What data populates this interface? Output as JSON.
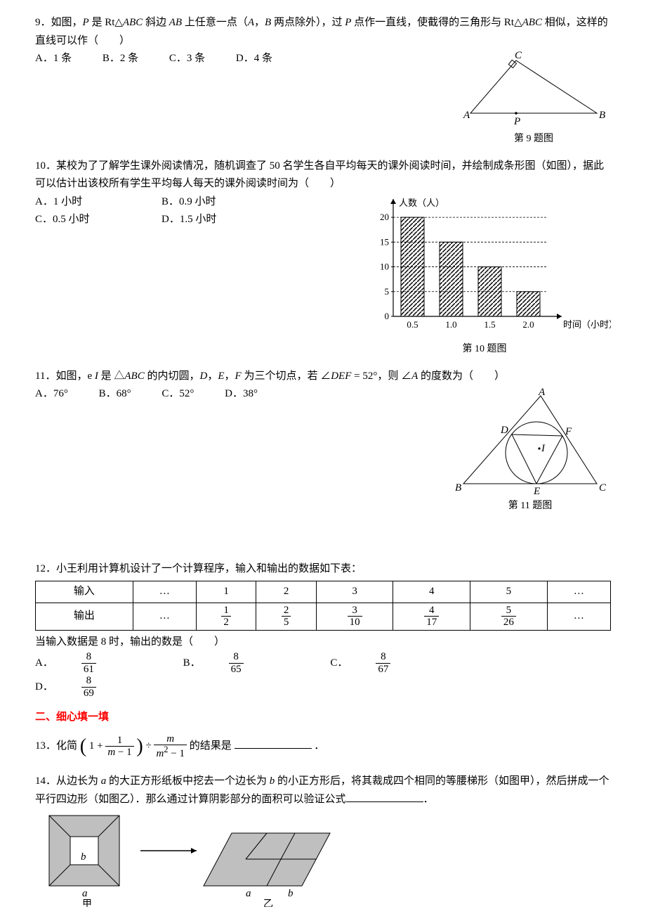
{
  "q9": {
    "stem_a": "9．如图，",
    "stem_b": "P",
    "stem_c": " 是 Rt△",
    "stem_d": "ABC",
    "stem_e": " 斜边 ",
    "stem_f": "AB",
    "stem_g": " 上任意一点（",
    "stem_h": "A",
    "stem_i": "，",
    "stem_j": "B",
    "stem_k": " 两点除外），过 ",
    "stem_l": "P",
    "stem_m": " 点作一直线，使截得的三角形与 Rt△",
    "stem_n": "ABC",
    "stem_o": " 相似，这样的直线可以作（　　）",
    "optA": "A．1 条",
    "optB": "B．2 条",
    "optC": "C．3 条",
    "optD": "D．4 条",
    "labels": {
      "A": "A",
      "B": "B",
      "C": "C",
      "P": "P"
    },
    "caption": "第 9 题图"
  },
  "q10": {
    "stem": "10．某校为了了解学生课外阅读情况，随机调查了 50 名学生各自平均每天的课外阅读时间，并绘制成条形图（如图），据此可以估计出该校所有学生平均每人每天的课外阅读时间为（　　）",
    "optA": "A．1 小时",
    "optB": "B．0.9 小时",
    "optC": "C．0.5 小时",
    "optD": "D．1.5 小时",
    "chart": {
      "categories": [
        "0.5",
        "1.0",
        "1.5",
        "2.0"
      ],
      "values": [
        20,
        15,
        10,
        5
      ],
      "yticks": [
        0,
        5,
        10,
        15,
        20
      ],
      "ymax": 22,
      "bar_width": 0.6,
      "bar_fill": "#ffffff",
      "bar_stroke": "#000000",
      "hatch": true,
      "grid_dash": "3,2",
      "ylabel": "人数（人）",
      "xlabel": "时间（小时）"
    },
    "caption": "第 10 题图"
  },
  "q11": {
    "stem_a": "11．如图，e ",
    "stem_b": "I",
    "stem_c": " 是 △",
    "stem_d": "ABC",
    "stem_e": " 的内切圆，",
    "stem_f": "D",
    "stem_g": "，",
    "stem_h": "E",
    "stem_i": "，",
    "stem_j": "F",
    "stem_k": " 为三个切点，若 ∠",
    "stem_l": "DEF",
    "stem_m": " = 52°，则 ∠",
    "stem_n": "A",
    "stem_o": " 的度数为（　　）",
    "optA": "A．76°",
    "optB": "B．68°",
    "optC": "C．52°",
    "optD": "D．38°",
    "labels": {
      "A": "A",
      "B": "B",
      "C": "C",
      "D": "D",
      "E": "E",
      "F": "F",
      "I": "I"
    },
    "caption": "第 11 题图"
  },
  "q12": {
    "stem": "12．小王利用计算机设计了一个计算程序，输入和输出的数据如下表：",
    "header_in": "输入",
    "header_out": "输出",
    "dots": "…",
    "inputs": [
      "1",
      "2",
      "3",
      "4",
      "5"
    ],
    "out_nums": [
      "1",
      "2",
      "3",
      "4",
      "5"
    ],
    "out_dens": [
      "2",
      "5",
      "10",
      "17",
      "26"
    ],
    "question": "当输入数据是 8 时，输出的数是（　　）",
    "optA_pre": "A．",
    "optB_pre": "B．",
    "optC_pre": "C．",
    "optD_pre": "D．",
    "num": "8",
    "denA": "61",
    "denB": "65",
    "denC": "67",
    "denD": "69"
  },
  "sec2": "二、细心填一填",
  "q13": {
    "pre": "13．化简",
    "f1num": "1",
    "f1den_a": "m",
    "f1den_b": " − 1",
    "div": " ÷ ",
    "f2num": "m",
    "f2den_a": "m",
    "f2den_b": "2",
    "f2den_c": " − 1",
    "post": " 的结果是",
    "end": "．"
  },
  "q14": {
    "stem_a": "14．从边长为 ",
    "stem_b": "a",
    "stem_c": " 的大正方形纸板中挖去一个边长为 ",
    "stem_d": "b",
    "stem_e": " 的小正方形后，将其裁成四个相同的等腰梯形（如图甲），然后拼成一个平行四边形（如图乙）．那么通过计算阴影部分的面积可以验证公式",
    "stem_f": "．",
    "labels": {
      "a": "a",
      "b": "b",
      "jia": "甲",
      "yi": "乙"
    },
    "fill": "#bfbfbf"
  }
}
